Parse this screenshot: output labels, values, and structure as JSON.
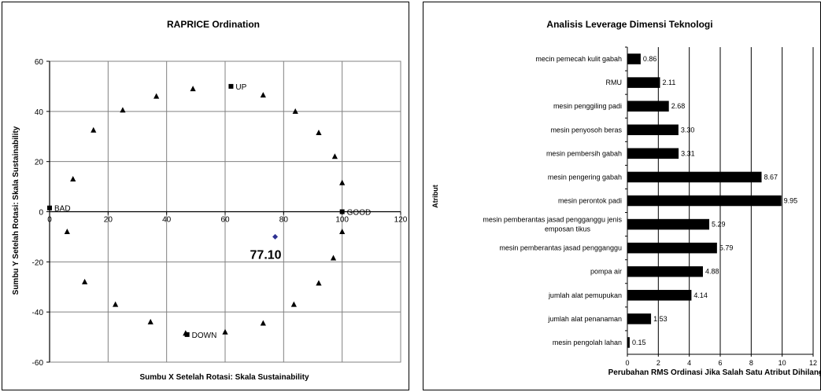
{
  "chart_data": [
    {
      "type": "scatter",
      "title": "RAPRICE Ordination",
      "xlabel": "Sumbu X Setelah Rotasi: Skala Sustainability",
      "ylabel": "Sumbu Y Setelah Rotasi: Skala Sustainability",
      "xlim": [
        0,
        120
      ],
      "ylim": [
        -60,
        60
      ],
      "xticks": [
        0,
        20,
        40,
        60,
        80,
        100,
        120
      ],
      "yticks": [
        60,
        40,
        20,
        0,
        -20,
        -40,
        -60
      ],
      "grid": true,
      "reference_points": [
        {
          "label": "UP",
          "x": 62,
          "y": 50
        },
        {
          "label": "BAD",
          "x": 0,
          "y": 1.5
        },
        {
          "label": "GOOD",
          "x": 100,
          "y": 0
        },
        {
          "label": "DOWN",
          "x": 47,
          "y": -49
        }
      ],
      "anchor_points": [
        {
          "x": 49,
          "y": 49
        },
        {
          "x": 73,
          "y": 46.5
        },
        {
          "x": 36.5,
          "y": 46
        },
        {
          "x": 25,
          "y": 40.5
        },
        {
          "x": 84,
          "y": 40
        },
        {
          "x": 15,
          "y": 32.5
        },
        {
          "x": 92,
          "y": 31.5
        },
        {
          "x": 97.5,
          "y": 22
        },
        {
          "x": 8,
          "y": 13
        },
        {
          "x": 100,
          "y": 11.5
        },
        {
          "x": 6,
          "y": -8
        },
        {
          "x": 100,
          "y": -8
        },
        {
          "x": 97,
          "y": -18.5
        },
        {
          "x": 12,
          "y": -28
        },
        {
          "x": 92,
          "y": -28.5
        },
        {
          "x": 22.5,
          "y": -37
        },
        {
          "x": 83.5,
          "y": -37
        },
        {
          "x": 34.5,
          "y": -44
        },
        {
          "x": 73,
          "y": -44.5
        },
        {
          "x": 60,
          "y": -48
        },
        {
          "x": 46.5,
          "y": -48.5
        }
      ],
      "result_point": {
        "label": "77.10",
        "x": 77.1,
        "y": -10
      },
      "colors": {
        "result_point": "#2e3192",
        "markers": "#000000"
      }
    },
    {
      "type": "bar",
      "orientation": "horizontal",
      "title": "Analisis Leverage Dimensi Teknologi",
      "xlabel": "Perubahan RMS Ordinasi Jika Salah Satu Atribut Dihilangkan",
      "ylabel": "Atribut",
      "xlim": [
        0,
        12
      ],
      "xticks": [
        0,
        2,
        4,
        6,
        8,
        10,
        12
      ],
      "grid": true,
      "categories": [
        "mecin pemecah kulit gabah",
        "RMU",
        "mesin penggiling padi",
        "mesin penyosoh beras",
        "mesin pembersih gabah",
        "mesin pengering gabah",
        "mesin perontok padi",
        "mesin pemberantas jasad pengganggu jenis emposan tikus",
        "mesin pemberantas jasad pengganggu",
        "pompa air",
        "jumlah alat pemupukan",
        "jumlah alat penanaman",
        "mesin pengolah lahan"
      ],
      "values": [
        0.86,
        2.11,
        2.68,
        3.3,
        3.31,
        8.67,
        9.95,
        5.29,
        5.79,
        4.88,
        4.14,
        1.53,
        0.15
      ],
      "value_labels": [
        "0.86",
        "2.11",
        "2.68",
        "3.30",
        "3.31",
        "8.67",
        "9.95",
        "5.29",
        "5.79",
        "4.88",
        "4.14",
        "1.53",
        "0.15"
      ],
      "colors": {
        "bars": "#000000"
      }
    }
  ]
}
